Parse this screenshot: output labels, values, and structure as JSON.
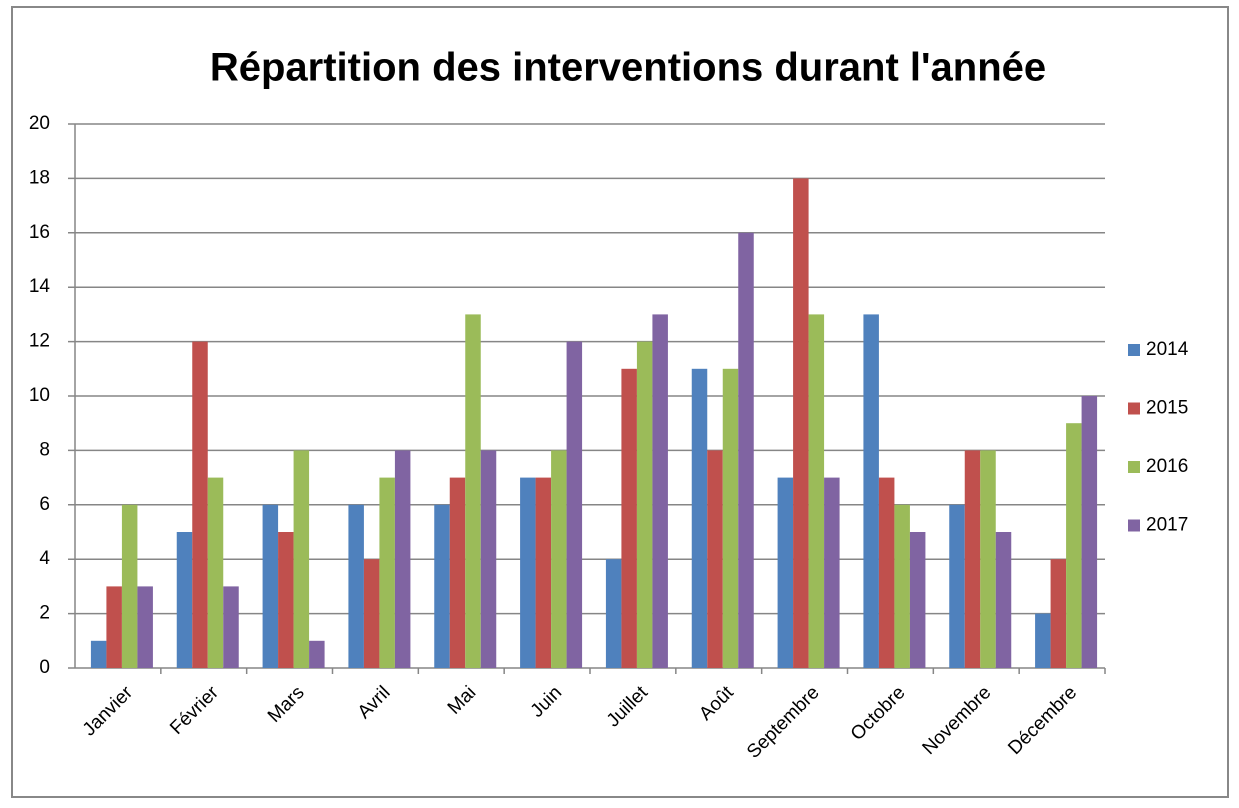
{
  "chart_data": {
    "type": "bar",
    "title": "Répartition des interventions durant l'année",
    "categories": [
      "Janvier",
      "Février",
      "Mars",
      "Avril",
      "Mai",
      "Juin",
      "Juillet",
      "Août",
      "Septembre",
      "Octobre",
      "Novembre",
      "Décembre"
    ],
    "series": [
      {
        "name": "2014",
        "color": "#4f81bd",
        "values": [
          1,
          5,
          6,
          6,
          6,
          7,
          4,
          11,
          7,
          13,
          6,
          2
        ]
      },
      {
        "name": "2015",
        "color": "#c0504d",
        "values": [
          3,
          12,
          5,
          4,
          7,
          7,
          11,
          8,
          18,
          7,
          8,
          4
        ]
      },
      {
        "name": "2016",
        "color": "#9bbb59",
        "values": [
          6,
          7,
          8,
          7,
          13,
          8,
          12,
          11,
          13,
          6,
          8,
          9
        ]
      },
      {
        "name": "2017",
        "color": "#8064a2",
        "values": [
          3,
          3,
          1,
          8,
          8,
          12,
          13,
          16,
          7,
          5,
          5,
          10
        ]
      }
    ],
    "ylim": [
      0,
      20
    ],
    "yticks": [
      0,
      2,
      4,
      6,
      8,
      10,
      12,
      14,
      16,
      18,
      20
    ],
    "grid": true,
    "legend": "right"
  }
}
